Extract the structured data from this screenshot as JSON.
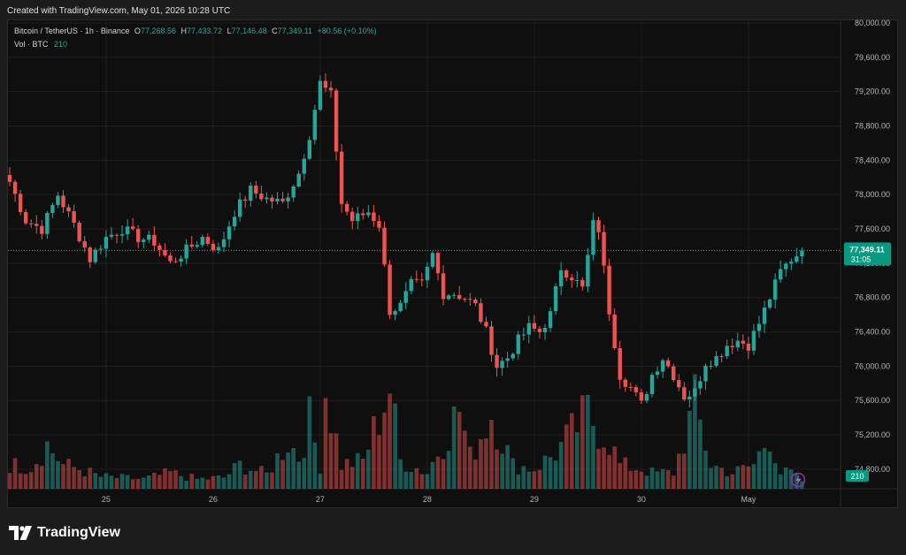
{
  "header": {
    "created_text": "Created with TradingView.com, May 01, 2026 10:28 UTC"
  },
  "legend": {
    "symbol": "Bitcoin / TetherUS · 1h · Binance",
    "o_label": "O",
    "o_value": "77,268.56",
    "h_label": "H",
    "h_value": "77,433.72",
    "l_label": "L",
    "l_value": "77,146.48",
    "c_label": "C",
    "c_value": "77,349.11",
    "change": "+80.56 (+0.10%)",
    "vol_label": "Vol · BTC",
    "vol_value": "210"
  },
  "footer": {
    "brand": "TradingView"
  },
  "colors": {
    "up": "#26a69a",
    "down": "#ef5350",
    "background": "#0f0f0f",
    "grid": "#1e1e1e",
    "badge": "#089981"
  },
  "chart_data": {
    "type": "candlestick",
    "ylim": [
      74500,
      80000
    ],
    "y_ticks": [
      "80,000.00",
      "79,600.00",
      "79,200.00",
      "78,800.00",
      "78,400.00",
      "78,000.00",
      "77,600.00",
      "77,200.00",
      "76,800.00",
      "76,400.00",
      "76,000.00",
      "75,600.00",
      "75,200.00",
      "74,800.00"
    ],
    "y_tick_values": [
      80000,
      79600,
      79200,
      78800,
      78400,
      78000,
      77600,
      77200,
      76800,
      76400,
      76000,
      75600,
      75200,
      74800
    ],
    "x_ticks": [
      "25",
      "26",
      "27",
      "28",
      "29",
      "30",
      "May"
    ],
    "x_tick_index": [
      18,
      38,
      58,
      78,
      98,
      118,
      138
    ],
    "last_price": 77349.11,
    "last_price_label": "77,349.11",
    "countdown": "31:05",
    "volume_label": "210",
    "anchor_closes": [
      [
        0,
        78150
      ],
      [
        3,
        77700
      ],
      [
        6,
        77600
      ],
      [
        9,
        78000
      ],
      [
        12,
        77650
      ],
      [
        15,
        77250
      ],
      [
        18,
        77500
      ],
      [
        21,
        77600
      ],
      [
        24,
        77500
      ],
      [
        27,
        77450
      ],
      [
        30,
        77200
      ],
      [
        33,
        77350
      ],
      [
        36,
        77500
      ],
      [
        39,
        77350
      ],
      [
        42,
        77800
      ],
      [
        45,
        78050
      ],
      [
        48,
        77950
      ],
      [
        51,
        77900
      ],
      [
        54,
        78250
      ],
      [
        56,
        78700
      ],
      [
        58,
        79300
      ],
      [
        60,
        79150
      ],
      [
        62,
        77900
      ],
      [
        64,
        77700
      ],
      [
        67,
        77800
      ],
      [
        69,
        77650
      ],
      [
        71,
        76650
      ],
      [
        73,
        76700
      ],
      [
        75,
        76950
      ],
      [
        77,
        76950
      ],
      [
        79,
        77300
      ],
      [
        81,
        76850
      ],
      [
        83,
        76850
      ],
      [
        85,
        76800
      ],
      [
        87,
        76700
      ],
      [
        89,
        76400
      ],
      [
        91,
        76000
      ],
      [
        93,
        76100
      ],
      [
        95,
        76300
      ],
      [
        97,
        76450
      ],
      [
        99,
        76400
      ],
      [
        101,
        76600
      ],
      [
        103,
        77150
      ],
      [
        105,
        77050
      ],
      [
        107,
        76900
      ],
      [
        109,
        77650
      ],
      [
        110,
        77600
      ],
      [
        112,
        76650
      ],
      [
        114,
        75900
      ],
      [
        116,
        75750
      ],
      [
        118,
        75550
      ],
      [
        120,
        75900
      ],
      [
        122,
        76100
      ],
      [
        124,
        75900
      ],
      [
        126,
        75650
      ],
      [
        128,
        75700
      ],
      [
        130,
        76050
      ],
      [
        132,
        76100
      ],
      [
        134,
        76250
      ],
      [
        136,
        76300
      ],
      [
        138,
        76250
      ],
      [
        140,
        76500
      ],
      [
        142,
        76800
      ],
      [
        144,
        77100
      ],
      [
        146,
        77250
      ],
      [
        148,
        77349
      ]
    ],
    "volume_anchor": [
      [
        0,
        30
      ],
      [
        4,
        28
      ],
      [
        7,
        55
      ],
      [
        10,
        30
      ],
      [
        13,
        25
      ],
      [
        17,
        15
      ],
      [
        20,
        14
      ],
      [
        25,
        12
      ],
      [
        30,
        20
      ],
      [
        35,
        12
      ],
      [
        40,
        14
      ],
      [
        43,
        30
      ],
      [
        48,
        18
      ],
      [
        52,
        60
      ],
      [
        54,
        40
      ],
      [
        56,
        85
      ],
      [
        58,
        30
      ],
      [
        59,
        125
      ],
      [
        62,
        30
      ],
      [
        66,
        35
      ],
      [
        71,
        128
      ],
      [
        73,
        35
      ],
      [
        78,
        20
      ],
      [
        84,
        100
      ],
      [
        86,
        40
      ],
      [
        90,
        95
      ],
      [
        94,
        30
      ],
      [
        98,
        25
      ],
      [
        102,
        45
      ],
      [
        105,
        70
      ],
      [
        108,
        95
      ],
      [
        110,
        75
      ],
      [
        112,
        60
      ],
      [
        114,
        30
      ],
      [
        118,
        25
      ],
      [
        120,
        20
      ],
      [
        124,
        20
      ],
      [
        128,
        105
      ],
      [
        131,
        30
      ],
      [
        135,
        20
      ],
      [
        139,
        30
      ],
      [
        142,
        70
      ],
      [
        144,
        20
      ],
      [
        146,
        20
      ],
      [
        148,
        10
      ]
    ]
  }
}
